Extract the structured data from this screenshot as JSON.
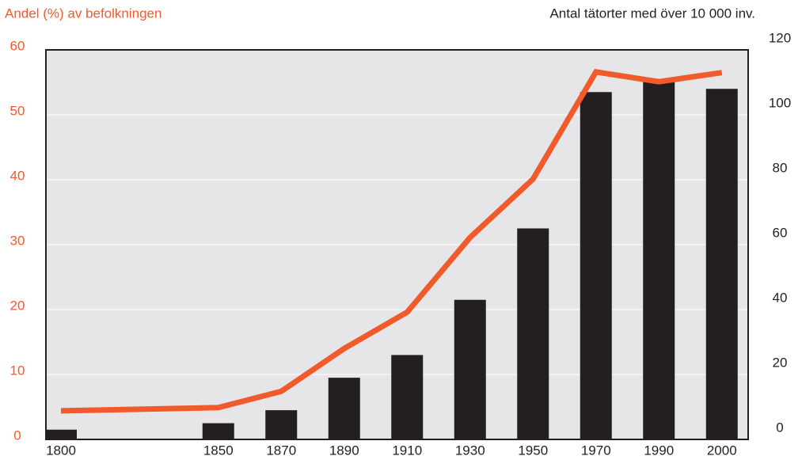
{
  "chart_data": {
    "type": "bar-line",
    "y_label": "Andel (%) av befolkningen",
    "y2_label": "Antal tätorter med över 10 000 inv.",
    "categories": [
      "1800",
      "1850",
      "1870",
      "1890",
      "1910",
      "1930",
      "1950",
      "1970",
      "1990",
      "2000"
    ],
    "series": [
      {
        "type": "bar",
        "axis": "y2",
        "color": "#231f20",
        "values": [
          3,
          5,
          9,
          19,
          26,
          43,
          65,
          107,
          111,
          108
        ]
      },
      {
        "type": "line",
        "axis": "y",
        "color": "#f15a2b",
        "values": [
          4.4,
          4.9,
          7.4,
          14,
          19.6,
          31.1,
          40.1,
          56.6,
          55.1,
          56.5
        ]
      }
    ],
    "ylim": [
      0,
      60
    ],
    "yticks": [
      0,
      10,
      20,
      30,
      40,
      50,
      60
    ],
    "y2lim": [
      0,
      120
    ],
    "y2ticks": [
      0,
      20,
      40,
      60,
      80,
      100,
      120
    ],
    "grid": true
  }
}
